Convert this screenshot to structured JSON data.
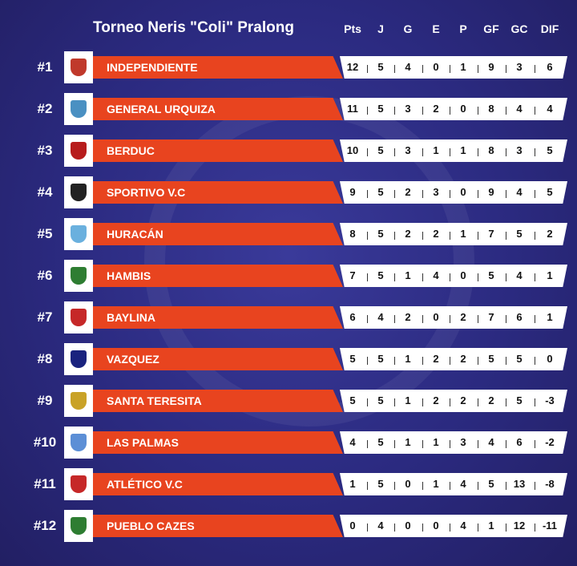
{
  "header": {
    "title": "Torneo Neris \"Coli\" Pralong",
    "columns": [
      "Pts",
      "J",
      "G",
      "E",
      "P",
      "GF",
      "GC",
      "DIF"
    ]
  },
  "table": {
    "rows": [
      {
        "rank": "#1",
        "team": "INDEPENDIENTE",
        "stats": [
          12,
          5,
          4,
          0,
          1,
          9,
          3,
          6
        ]
      },
      {
        "rank": "#2",
        "team": "GENERAL URQUIZA",
        "stats": [
          11,
          5,
          3,
          2,
          0,
          8,
          4,
          4
        ]
      },
      {
        "rank": "#3",
        "team": "BERDUC",
        "stats": [
          10,
          5,
          3,
          1,
          1,
          8,
          3,
          5
        ]
      },
      {
        "rank": "#4",
        "team": "SPORTIVO V.C",
        "stats": [
          9,
          5,
          2,
          3,
          0,
          9,
          4,
          5
        ]
      },
      {
        "rank": "#5",
        "team": "HURACÁN",
        "stats": [
          8,
          5,
          2,
          2,
          1,
          7,
          5,
          2
        ]
      },
      {
        "rank": "#6",
        "team": "HAMBIS",
        "stats": [
          7,
          5,
          1,
          4,
          0,
          5,
          4,
          1
        ]
      },
      {
        "rank": "#7",
        "team": "BAYLINA",
        "stats": [
          6,
          4,
          2,
          0,
          2,
          7,
          6,
          1
        ]
      },
      {
        "rank": "#8",
        "team": "VAZQUEZ",
        "stats": [
          5,
          5,
          1,
          2,
          2,
          5,
          5,
          0
        ]
      },
      {
        "rank": "#9",
        "team": "SANTA TERESITA",
        "stats": [
          5,
          5,
          1,
          2,
          2,
          2,
          5,
          -3
        ]
      },
      {
        "rank": "#10",
        "team": "LAS PALMAS",
        "stats": [
          4,
          5,
          1,
          1,
          3,
          4,
          6,
          -2
        ]
      },
      {
        "rank": "#11",
        "team": "ATLÉTICO V.C",
        "stats": [
          1,
          5,
          0,
          1,
          4,
          5,
          13,
          -8
        ]
      },
      {
        "rank": "#12",
        "team": "PUEBLO CAZES",
        "stats": [
          0,
          4,
          0,
          0,
          4,
          1,
          12,
          -11
        ]
      }
    ]
  }
}
